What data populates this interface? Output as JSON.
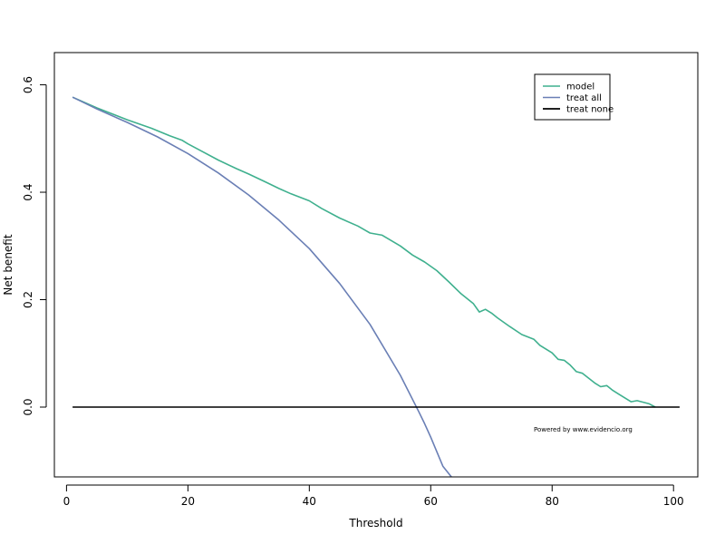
{
  "chart_data": {
    "type": "line",
    "title": "",
    "xlabel": "Threshold",
    "ylabel": "Net benefit",
    "xlim": [
      -2,
      104
    ],
    "ylim": [
      -0.13,
      0.66
    ],
    "x_ticks": [
      0,
      20,
      40,
      60,
      80,
      100
    ],
    "x_tick_labels": [
      "0",
      "20",
      "40",
      "60",
      "80",
      "100"
    ],
    "y_ticks": [
      0.0,
      0.2,
      0.4,
      0.6
    ],
    "y_tick_labels": [
      "0.0",
      "0.2",
      "0.4",
      "0.6"
    ],
    "grid": false,
    "legend_position": "top-right",
    "legend": [
      "model",
      "treat all",
      "treat none"
    ],
    "annotation": "Powered by www.evidencio.org",
    "series": [
      {
        "name": "model",
        "color": "#3fb08e",
        "x": [
          1,
          5,
          10,
          14,
          17,
          19,
          20,
          22,
          25,
          28,
          30,
          33,
          35,
          37,
          40,
          42,
          45,
          48,
          50,
          52,
          55,
          57,
          59,
          61,
          63,
          65,
          67,
          68,
          69,
          70,
          71,
          73,
          75,
          77,
          78,
          80,
          81,
          82,
          83,
          84,
          85,
          87,
          88,
          89,
          90,
          91,
          93,
          94,
          96,
          97
        ],
        "y": [
          0.577,
          0.557,
          0.535,
          0.519,
          0.505,
          0.497,
          0.49,
          0.478,
          0.46,
          0.444,
          0.434,
          0.418,
          0.407,
          0.397,
          0.384,
          0.37,
          0.352,
          0.337,
          0.324,
          0.32,
          0.3,
          0.283,
          0.27,
          0.254,
          0.233,
          0.211,
          0.193,
          0.177,
          0.182,
          0.175,
          0.166,
          0.15,
          0.135,
          0.126,
          0.115,
          0.101,
          0.089,
          0.087,
          0.078,
          0.066,
          0.063,
          0.045,
          0.038,
          0.04,
          0.031,
          0.024,
          0.01,
          0.012,
          0.006,
          0.0
        ]
      },
      {
        "name": "treat all",
        "color": "#6a7fb5",
        "x": [
          1,
          5,
          10,
          15,
          20,
          25,
          30,
          35,
          40,
          45,
          50,
          55,
          58,
          59,
          60,
          62,
          63.4
        ],
        "y": [
          0.577,
          0.555,
          0.53,
          0.503,
          0.472,
          0.436,
          0.395,
          0.348,
          0.295,
          0.23,
          0.154,
          0.059,
          -0.008,
          -0.031,
          -0.056,
          -0.11,
          -0.13
        ]
      },
      {
        "name": "treat none",
        "color": "#000000",
        "x": [
          1,
          101
        ],
        "y": [
          0,
          0
        ]
      }
    ]
  }
}
